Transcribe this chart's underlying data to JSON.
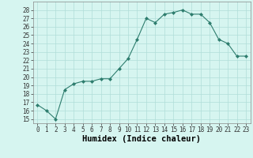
{
  "x": [
    0,
    1,
    2,
    3,
    4,
    5,
    6,
    7,
    8,
    9,
    10,
    11,
    12,
    13,
    14,
    15,
    16,
    17,
    18,
    19,
    20,
    21,
    22,
    23
  ],
  "y": [
    16.7,
    16.0,
    15.0,
    18.5,
    19.2,
    19.5,
    19.5,
    19.8,
    19.8,
    21.0,
    22.2,
    24.5,
    27.0,
    26.5,
    27.5,
    27.7,
    28.0,
    27.5,
    27.5,
    26.5,
    24.5,
    24.0,
    22.5,
    22.5
  ],
  "xlabel": "Humidex (Indice chaleur)",
  "ylim": [
    14.5,
    29.0
  ],
  "xlim": [
    -0.5,
    23.5
  ],
  "yticks": [
    15,
    16,
    17,
    18,
    19,
    20,
    21,
    22,
    23,
    24,
    25,
    26,
    27,
    28
  ],
  "xticks": [
    0,
    1,
    2,
    3,
    4,
    5,
    6,
    7,
    8,
    9,
    10,
    11,
    12,
    13,
    14,
    15,
    16,
    17,
    18,
    19,
    20,
    21,
    22,
    23
  ],
  "line_color": "#2e7d6e",
  "marker_color": "#2e7d6e",
  "bg_color": "#d6f5f0",
  "grid_color": "#b0ddd8",
  "tick_fontsize": 5.5,
  "label_fontsize": 7.5
}
